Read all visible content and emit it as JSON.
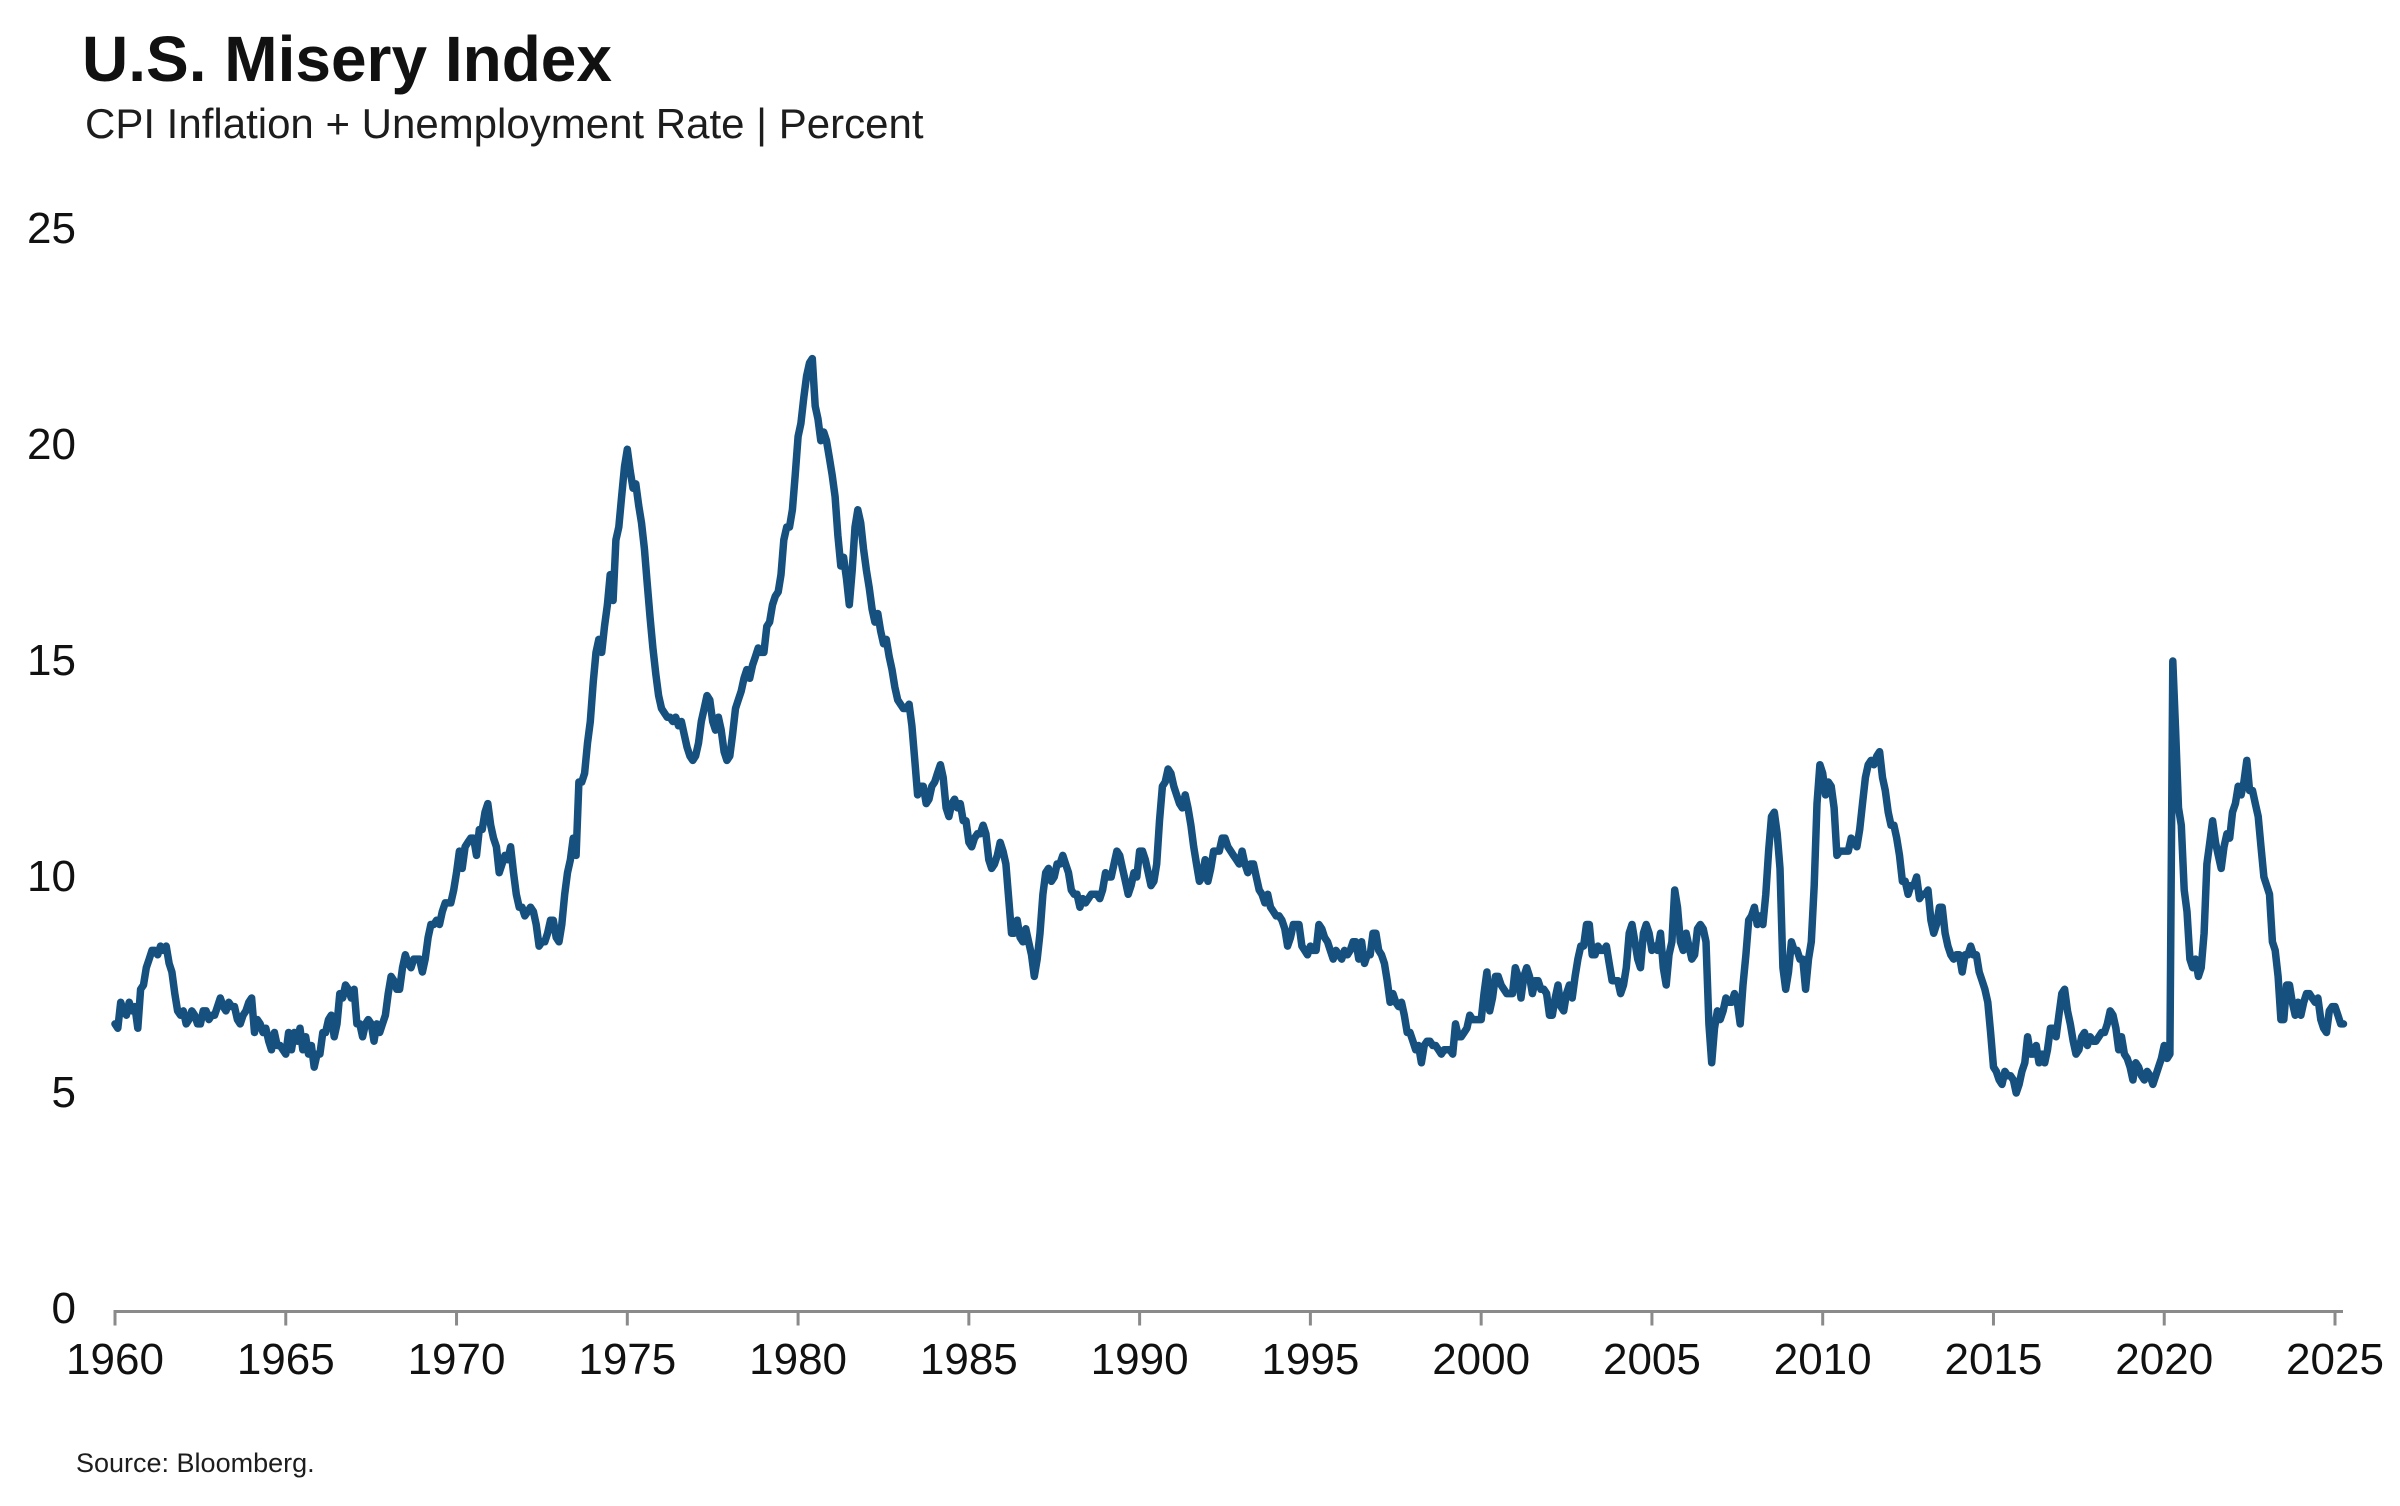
{
  "chart_data": {
    "type": "line",
    "title": "U.S. Misery Index",
    "subtitle": "CPI Inflation + Unemployment Rate | Percent",
    "source": "Source: Bloomberg.",
    "series_name": "U.S. Misery Index (CPI inflation + unemployment rate, percent, monthly)",
    "xlabel": "",
    "ylabel": "Percent",
    "ylim": [
      0,
      25
    ],
    "xlim": [
      1960,
      2025.4
    ],
    "grid": false,
    "legend_position": "none",
    "y_ticks": [
      0,
      5,
      10,
      15,
      20,
      25
    ],
    "x_ticks": [
      1960,
      1965,
      1970,
      1975,
      1980,
      1985,
      1990,
      1995,
      2000,
      2005,
      2010,
      2015,
      2020,
      2025
    ],
    "colors": {
      "line": "#15507f",
      "axis": "#8a8a8a",
      "text": "#111111"
    },
    "x_start_year": 1960,
    "frequency": "monthly",
    "values_by_year": {
      "1960": [
        6.6,
        6.5,
        7.1,
        6.9,
        6.8,
        7.1,
        6.9,
        7.0,
        6.5,
        7.4,
        7.5,
        7.9
      ],
      "1961": [
        8.1,
        8.3,
        8.3,
        8.2,
        8.4,
        8.3,
        8.4,
        8.0,
        7.8,
        7.3,
        6.9,
        6.8
      ],
      "1962": [
        6.9,
        6.6,
        6.7,
        6.9,
        6.8,
        6.6,
        6.6,
        6.9,
        6.9,
        6.7,
        6.8,
        6.8
      ],
      "1963": [
        7.0,
        7.2,
        7.0,
        6.9,
        7.1,
        7.0,
        7.0,
        6.7,
        6.6,
        6.8,
        6.9,
        7.1
      ],
      "1964": [
        7.2,
        6.4,
        6.7,
        6.6,
        6.4,
        6.5,
        6.2,
        6.0,
        6.4,
        6.1,
        6.1,
        6.0
      ],
      "1965": [
        5.9,
        6.4,
        6.0,
        6.4,
        6.2,
        6.5,
        6.0,
        6.3,
        5.9,
        6.1,
        5.6,
        5.9
      ],
      "1966": [
        5.9,
        6.4,
        6.4,
        6.7,
        6.8,
        6.3,
        6.6,
        7.3,
        7.2,
        7.5,
        7.4,
        7.2
      ],
      "1967": [
        7.4,
        6.6,
        6.6,
        6.3,
        6.6,
        6.7,
        6.6,
        6.2,
        6.6,
        6.4,
        6.6,
        6.8
      ],
      "1968": [
        7.3,
        7.7,
        7.6,
        7.4,
        7.4,
        7.9,
        8.2,
        8.0,
        7.9,
        8.1,
        8.1,
        8.1
      ],
      "1969": [
        7.8,
        8.1,
        8.6,
        8.9,
        8.9,
        9.0,
        8.9,
        9.2,
        9.4,
        9.4,
        9.4,
        9.7
      ],
      "1970": [
        10.1,
        10.6,
        10.2,
        10.7,
        10.8,
        10.9,
        10.9,
        10.5,
        11.1,
        11.1,
        11.5,
        11.7
      ],
      "1971": [
        11.2,
        10.9,
        10.7,
        10.1,
        10.3,
        10.5,
        10.4,
        10.7,
        10.1,
        9.6,
        9.3,
        9.3
      ],
      "1972": [
        9.1,
        9.2,
        9.3,
        9.2,
        8.9,
        8.4,
        8.5,
        8.5,
        8.7,
        9.0,
        9.0,
        8.6
      ],
      "1973": [
        8.5,
        8.9,
        9.6,
        10.1,
        10.4,
        10.9,
        10.5,
        12.2,
        12.2,
        12.4,
        13.1,
        13.6
      ],
      "1974": [
        14.5,
        15.2,
        15.5,
        15.2,
        15.8,
        16.3,
        17.0,
        16.4,
        17.8,
        18.1,
        18.8,
        19.5
      ],
      "1975": [
        19.9,
        19.4,
        19.0,
        19.1,
        18.6,
        18.2,
        17.6,
        16.8,
        16.0,
        15.3,
        14.7,
        14.2
      ],
      "1976": [
        13.9,
        13.8,
        13.7,
        13.7,
        13.6,
        13.7,
        13.5,
        13.6,
        13.3,
        13.0,
        12.8,
        12.7
      ],
      "1977": [
        12.8,
        13.1,
        13.6,
        13.9,
        14.2,
        14.1,
        13.6,
        13.4,
        13.7,
        13.4,
        12.9,
        12.7
      ],
      "1978": [
        12.8,
        13.3,
        13.9,
        14.1,
        14.3,
        14.6,
        14.8,
        14.6,
        14.9,
        15.1,
        15.3,
        15.2
      ],
      "1979": [
        15.2,
        15.8,
        15.9,
        16.3,
        16.5,
        16.6,
        17.0,
        17.8,
        18.1,
        18.1,
        18.5,
        19.3
      ],
      "1980": [
        20.2,
        20.5,
        21.1,
        21.6,
        21.9,
        22.0,
        20.9,
        20.6,
        20.1,
        20.3,
        20.1,
        19.7
      ],
      "1981": [
        19.3,
        18.8,
        17.9,
        17.2,
        17.4,
        16.9,
        16.3,
        17.1,
        18.1,
        18.5,
        18.2,
        17.6
      ],
      "1982": [
        17.1,
        16.7,
        16.2,
        15.9,
        16.1,
        15.7,
        15.4,
        15.5,
        15.1,
        14.8,
        14.4,
        14.1
      ],
      "1983": [
        14.0,
        13.9,
        13.9,
        14.0,
        13.5,
        12.7,
        11.9,
        12.1,
        12.1,
        11.7,
        11.8,
        12.1
      ],
      "1984": [
        12.2,
        12.4,
        12.6,
        12.3,
        11.6,
        11.4,
        11.7,
        11.8,
        11.6,
        11.7,
        11.3,
        11.3
      ],
      "1985": [
        10.8,
        10.7,
        10.9,
        11.0,
        11.0,
        11.2,
        11.0,
        10.4,
        10.2,
        10.3,
        10.5,
        10.8
      ],
      "1986": [
        10.6,
        10.3,
        9.5,
        8.7,
        8.7,
        9.0,
        8.6,
        8.5,
        8.8,
        8.5,
        8.2,
        7.7
      ],
      "1987": [
        8.1,
        8.7,
        9.6,
        10.1,
        10.2,
        9.9,
        10.0,
        10.3,
        10.3,
        10.5,
        10.3,
        10.1
      ],
      "1988": [
        9.7,
        9.6,
        9.6,
        9.3,
        9.5,
        9.4,
        9.5,
        9.6,
        9.6,
        9.6,
        9.5,
        9.7
      ],
      "1989": [
        10.1,
        10.0,
        10.0,
        10.3,
        10.6,
        10.5,
        10.2,
        9.9,
        9.6,
        9.8,
        10.1,
        10.0
      ],
      "1990": [
        10.6,
        10.6,
        10.4,
        10.1,
        9.8,
        9.9,
        10.3,
        11.3,
        12.1,
        12.2,
        12.5,
        12.4
      ],
      "1991": [
        12.1,
        11.9,
        11.7,
        11.6,
        11.9,
        11.6,
        11.2,
        10.7,
        10.3,
        9.9,
        10.0,
        10.4
      ],
      "1992": [
        9.9,
        10.2,
        10.6,
        10.6,
        10.6,
        10.9,
        10.9,
        10.7,
        10.6,
        10.5,
        10.4,
        10.3
      ],
      "1993": [
        10.6,
        10.3,
        10.1,
        10.3,
        10.3,
        10.0,
        9.7,
        9.6,
        9.4,
        9.6,
        9.3,
        9.2
      ],
      "1994": [
        9.1,
        9.1,
        9.0,
        8.8,
        8.4,
        8.6,
        8.9,
        8.9,
        8.9,
        8.4,
        8.3,
        8.2
      ],
      "1995": [
        8.4,
        8.3,
        8.3,
        8.9,
        8.8,
        8.6,
        8.5,
        8.3,
        8.1,
        8.3,
        8.2,
        8.1
      ],
      "1996": [
        8.3,
        8.2,
        8.3,
        8.5,
        8.5,
        8.1,
        8.5,
        8.0,
        8.2,
        8.2,
        8.7,
        8.7
      ],
      "1997": [
        8.3,
        8.2,
        8.0,
        7.6,
        7.1,
        7.3,
        7.1,
        7.0,
        7.1,
        6.8,
        6.4,
        6.4
      ],
      "1998": [
        6.2,
        6.0,
        6.1,
        5.7,
        6.1,
        6.2,
        6.2,
        6.1,
        6.1,
        6.0,
        5.9,
        6.0
      ],
      "1999": [
        6.0,
        6.0,
        5.9,
        6.6,
        6.3,
        6.3,
        6.4,
        6.5,
        6.8,
        6.7,
        6.7,
        6.7
      ],
      "2000": [
        6.7,
        7.3,
        7.8,
        6.9,
        7.2,
        7.7,
        7.7,
        7.5,
        7.4,
        7.3,
        7.3,
        7.3
      ],
      "2001": [
        7.9,
        7.7,
        7.2,
        7.7,
        7.9,
        7.7,
        7.3,
        7.6,
        7.6,
        7.4,
        7.4,
        7.3
      ],
      "2002": [
        6.8,
        6.8,
        7.2,
        7.5,
        7.0,
        6.9,
        7.3,
        7.5,
        7.2,
        7.7,
        8.1,
        8.4
      ],
      "2003": [
        8.4,
        8.9,
        8.9,
        8.2,
        8.2,
        8.4,
        8.3,
        8.3,
        8.4,
        8.0,
        7.6,
        7.6
      ],
      "2004": [
        7.6,
        7.3,
        7.5,
        7.9,
        8.7,
        8.9,
        8.5,
        8.1,
        7.9,
        8.7,
        8.9,
        8.7
      ],
      "2005": [
        8.3,
        8.4,
        8.3,
        8.7,
        7.9,
        7.5,
        8.2,
        8.5,
        9.7,
        9.3,
        8.5,
        8.3
      ],
      "2006": [
        8.7,
        8.4,
        8.1,
        8.2,
        8.8,
        8.9,
        8.8,
        8.5,
        6.6,
        5.7,
        6.5,
        6.9
      ],
      "2007": [
        6.7,
        6.9,
        7.2,
        7.1,
        7.1,
        7.3,
        7.1,
        6.6,
        7.5,
        8.2,
        9.0,
        9.1
      ],
      "2008": [
        9.3,
        8.9,
        9.1,
        8.9,
        9.6,
        10.6,
        11.4,
        11.5,
        11.0,
        10.2,
        7.9,
        7.4
      ],
      "2009": [
        7.8,
        8.5,
        8.3,
        8.3,
        8.1,
        8.1,
        7.4,
        8.1,
        8.5,
        9.8,
        11.7,
        12.6
      ],
      "2010": [
        12.4,
        11.9,
        12.2,
        12.1,
        11.6,
        10.5,
        10.6,
        10.6,
        10.6,
        10.6,
        10.9,
        10.8
      ],
      "2011": [
        10.7,
        11.1,
        11.7,
        12.3,
        12.6,
        12.7,
        12.6,
        12.8,
        12.9,
        12.3,
        12.0,
        11.5
      ],
      "2012": [
        11.2,
        11.2,
        10.9,
        10.5,
        9.9,
        9.9,
        9.6,
        9.8,
        9.8,
        10.0,
        9.5,
        9.6
      ],
      "2013": [
        9.6,
        9.7,
        9.0,
        8.7,
        8.9,
        9.3,
        9.3,
        8.7,
        8.4,
        8.2,
        8.1,
        8.2
      ],
      "2014": [
        8.2,
        7.8,
        8.2,
        8.2,
        8.4,
        8.2,
        8.2,
        7.8,
        7.6,
        7.4,
        7.1,
        6.4
      ],
      "2015": [
        5.6,
        5.5,
        5.3,
        5.2,
        5.5,
        5.4,
        5.4,
        5.3,
        5.0,
        5.2,
        5.5,
        5.7
      ],
      "2016": [
        6.3,
        5.9,
        5.9,
        6.1,
        5.7,
        5.9,
        5.7,
        6.0,
        6.5,
        6.5,
        6.3,
        6.8
      ],
      "2017": [
        7.3,
        7.4,
        6.9,
        6.6,
        6.2,
        5.9,
        6.0,
        6.3,
        6.4,
        6.1,
        6.3,
        6.2
      ],
      "2018": [
        6.2,
        6.3,
        6.4,
        6.4,
        6.6,
        6.9,
        6.8,
        6.5,
        6.0,
        6.3,
        5.9,
        5.8
      ],
      "2019": [
        5.6,
        5.3,
        5.7,
        5.6,
        5.4,
        5.3,
        5.5,
        5.4,
        5.2,
        5.4,
        5.6,
        5.8
      ],
      "2020": [
        6.1,
        5.8,
        5.9,
        15.0,
        13.4,
        11.6,
        11.2,
        9.7,
        9.2,
        8.1,
        7.9,
        8.1
      ],
      "2021": [
        7.7,
        7.9,
        8.7,
        10.3,
        10.8,
        11.3,
        10.8,
        10.5,
        10.2,
        10.7,
        11.0,
        10.9
      ],
      "2022": [
        11.5,
        11.7,
        12.1,
        11.9,
        12.2,
        12.7,
        12.0,
        12.0,
        11.7,
        11.4,
        10.7,
        10.0
      ],
      "2023": [
        9.8,
        9.6,
        8.5,
        8.3,
        7.7,
        6.7,
        6.7,
        7.5,
        7.5,
        7.1,
        6.8,
        7.1
      ],
      "2024": [
        6.8,
        7.1,
        7.3,
        7.3,
        7.2,
        7.1,
        7.2,
        6.7,
        6.5,
        6.4,
        6.9,
        7.0
      ],
      "2025": [
        7.0,
        6.8,
        6.6,
        6.6
      ]
    }
  }
}
